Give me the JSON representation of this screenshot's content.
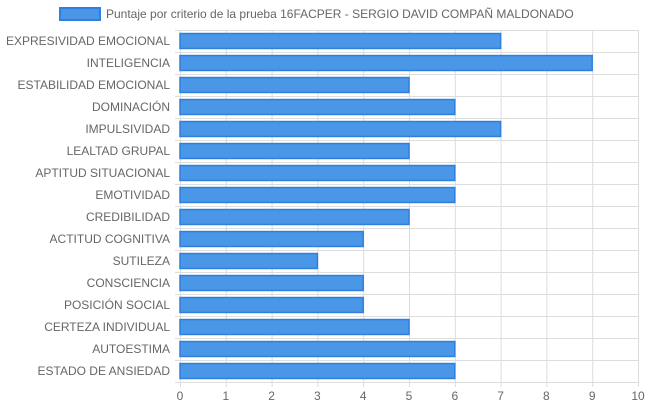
{
  "chart_data": {
    "type": "bar",
    "orientation": "horizontal",
    "categories": [
      "EXPRESIVIDAD EMOCIONAL",
      "INTELIGENCIA",
      "ESTABILIDAD EMOCIONAL",
      "DOMINACIÓN",
      "IMPULSIVIDAD",
      "LEALTAD GRUPAL",
      "APTITUD SITUACIONAL",
      "EMOTIVIDAD",
      "CREDIBILIDAD",
      "ACTITUD COGNITIVA",
      "SUTILEZA",
      "CONSCIENCIA",
      "POSICIÓN SOCIAL",
      "CERTEZA INDIVIDUAL",
      "AUTOESTIMA",
      "ESTADO DE ANSIEDAD"
    ],
    "series": [
      {
        "name": "Puntaje por criterio de la prueba 16FACPER - SERGIO DAVID COMPAÑ MALDONADO",
        "values": [
          7,
          9,
          5,
          6,
          7,
          5,
          6,
          6,
          5,
          4,
          3,
          4,
          4,
          5,
          6,
          6
        ]
      }
    ],
    "xlim": [
      0,
      10
    ],
    "x_ticks": [
      0,
      1,
      2,
      3,
      4,
      5,
      6,
      7,
      8,
      9,
      10
    ],
    "grid": true,
    "legend_position": "top",
    "colors": {
      "bar_fill": "#4a97e8",
      "bar_stroke": "#2f7fe0",
      "grid": "#dddddd",
      "text": "#666666"
    }
  }
}
